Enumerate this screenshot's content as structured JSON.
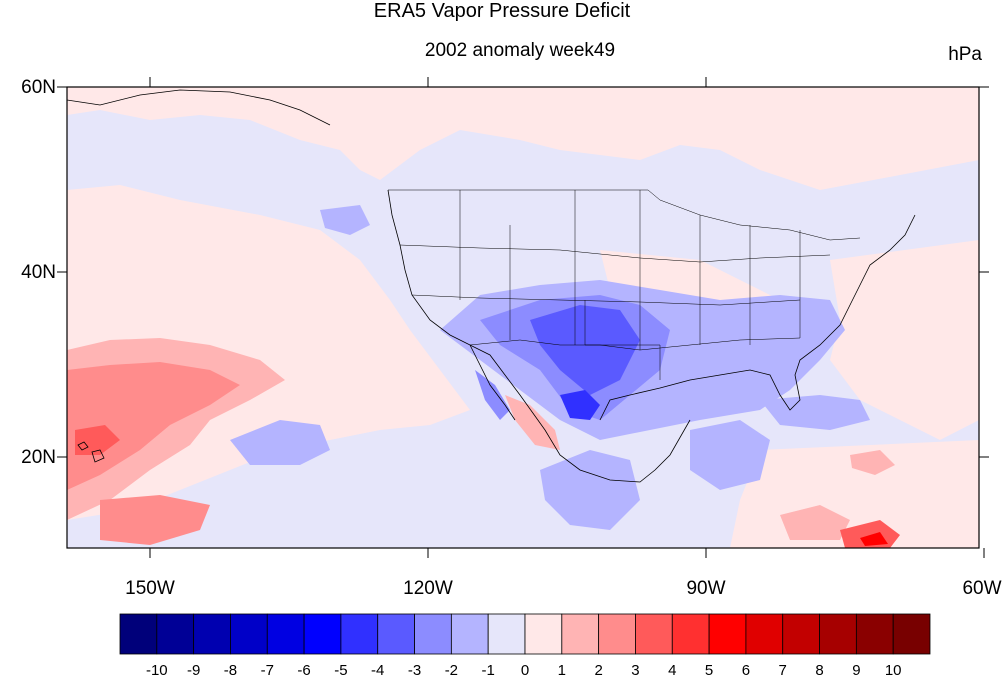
{
  "title": "ERA5 Vapor Pressure Deficit",
  "subtitle": "2002 anomaly week49",
  "units": "hPa",
  "map": {
    "lon_range": [
      -159,
      -60
    ],
    "lat_range": [
      10,
      60
    ],
    "y_ticks": [
      "60N",
      "40N",
      "20N"
    ],
    "x_ticks": [
      "150W",
      "120W",
      "90W",
      "60W"
    ],
    "region": "North America, eastern Pacific and Caribbean",
    "features": [
      "coastlines",
      "US state boundaries",
      "country boundaries"
    ]
  },
  "colorbar": {
    "labels": [
      "-10",
      "-9",
      "-8",
      "-7",
      "-6",
      "-5",
      "-4",
      "-3",
      "-2",
      "-1",
      "0",
      "1",
      "2",
      "3",
      "4",
      "5",
      "6",
      "7",
      "8",
      "9",
      "10"
    ],
    "colors": [
      "#00007a",
      "#000096",
      "#0000b0",
      "#0000c8",
      "#0000e2",
      "#0000ff",
      "#3030ff",
      "#5a5aff",
      "#8c8cff",
      "#b4b4ff",
      "#e6e6fa",
      "#ffe8e8",
      "#ffb4b4",
      "#ff8c8c",
      "#ff5a5a",
      "#ff3030",
      "#ff0000",
      "#e00000",
      "#c20000",
      "#a60000",
      "#8a0000",
      "#780000"
    ]
  },
  "colors": {
    "neutral_neg": "#e6e6fa",
    "neutral_pos": "#ffe8e8",
    "mild_neg": "#b4b4ff",
    "mod_neg": "#8c8cff",
    "strong_neg": "#5a5aff",
    "mild_pos": "#ffb4b4",
    "mod_pos": "#ff8c8c",
    "strong_pos": "#ff5a5a",
    "extreme_pos": "#ff0000"
  }
}
